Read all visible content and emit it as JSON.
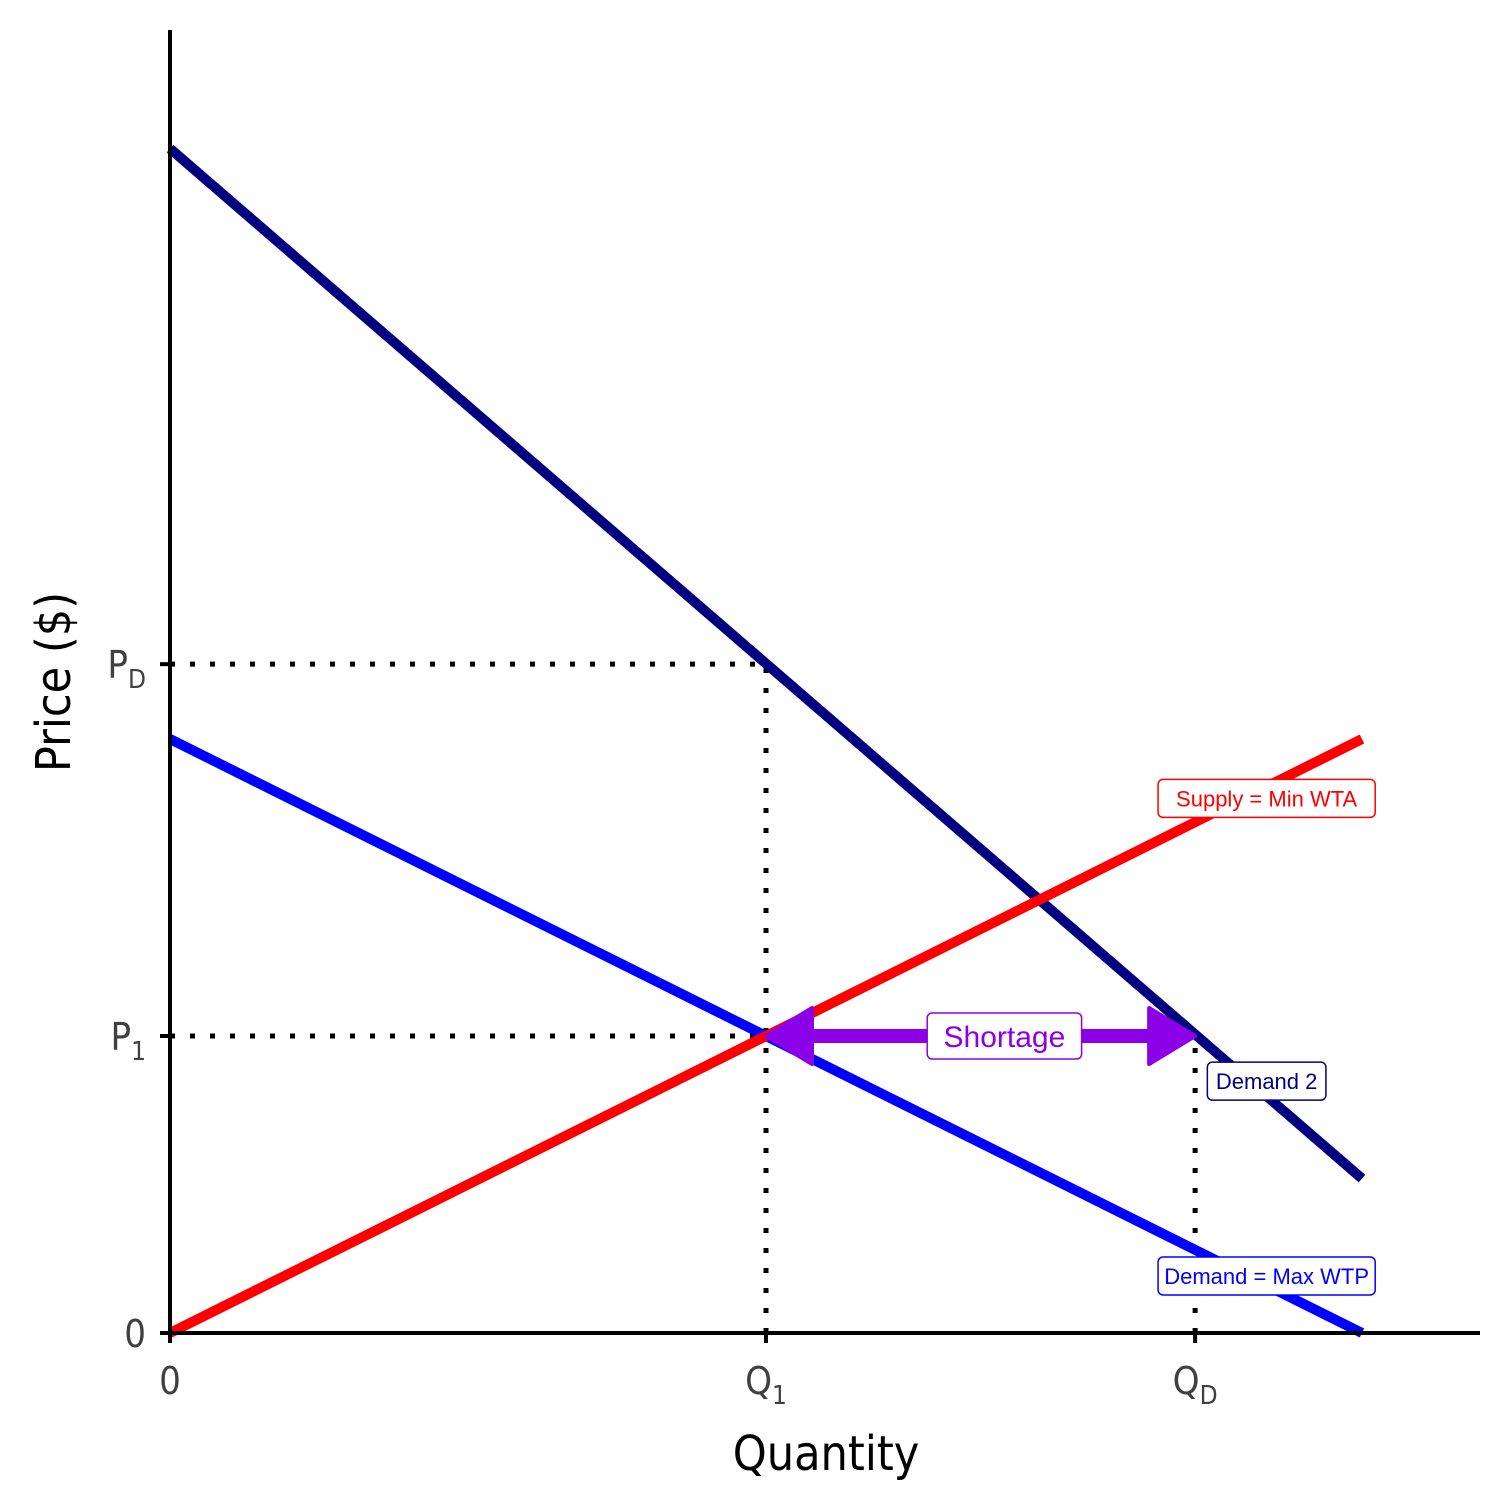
{
  "chart_data": {
    "type": "line",
    "xlabel": "Quantity",
    "ylabel": "Price ($)",
    "xlim": [
      0,
      11
    ],
    "ylim": [
      0,
      10.8
    ],
    "x_ticks": [
      {
        "value": 0,
        "main": "0",
        "sub": ""
      },
      {
        "value": 5,
        "main": "Q",
        "sub": "1"
      },
      {
        "value": 8.6,
        "main": "Q",
        "sub": "D"
      }
    ],
    "y_ticks": [
      {
        "value": 0,
        "main": "0",
        "sub": ""
      },
      {
        "value": 2.5,
        "main": "P",
        "sub": "1"
      },
      {
        "value": 5.63,
        "main": "P",
        "sub": "D"
      }
    ],
    "series": [
      {
        "name": "Supply = Min WTA",
        "color": "#ff0000",
        "points": [
          [
            0,
            0
          ],
          [
            10,
            5
          ]
        ],
        "label_at": [
          9.2,
          4.5
        ]
      },
      {
        "name": "Demand = Max WTP",
        "color": "#0000ff",
        "points": [
          [
            0,
            5
          ],
          [
            10,
            0
          ]
        ],
        "label_at": [
          9.2,
          0.48
        ]
      },
      {
        "name": "Demand 2",
        "color": "#000080",
        "points": [
          [
            0,
            9.97
          ],
          [
            10,
            1.3
          ]
        ],
        "label_at": [
          9.2,
          2.12
        ]
      }
    ],
    "guides": [
      {
        "from": [
          0,
          2.5
        ],
        "to": [
          5,
          2.5
        ]
      },
      {
        "from": [
          5,
          0
        ],
        "to": [
          5,
          5.63
        ]
      },
      {
        "from": [
          0,
          5.63
        ],
        "to": [
          5,
          5.63
        ]
      },
      {
        "from": [
          8.6,
          0
        ],
        "to": [
          8.6,
          2.5
        ]
      }
    ],
    "annotation": {
      "text": "Shortage",
      "color": "#8b00e6",
      "from": [
        5,
        2.5
      ],
      "to": [
        8.6,
        2.5
      ],
      "label_at": [
        7,
        2.5
      ]
    }
  }
}
